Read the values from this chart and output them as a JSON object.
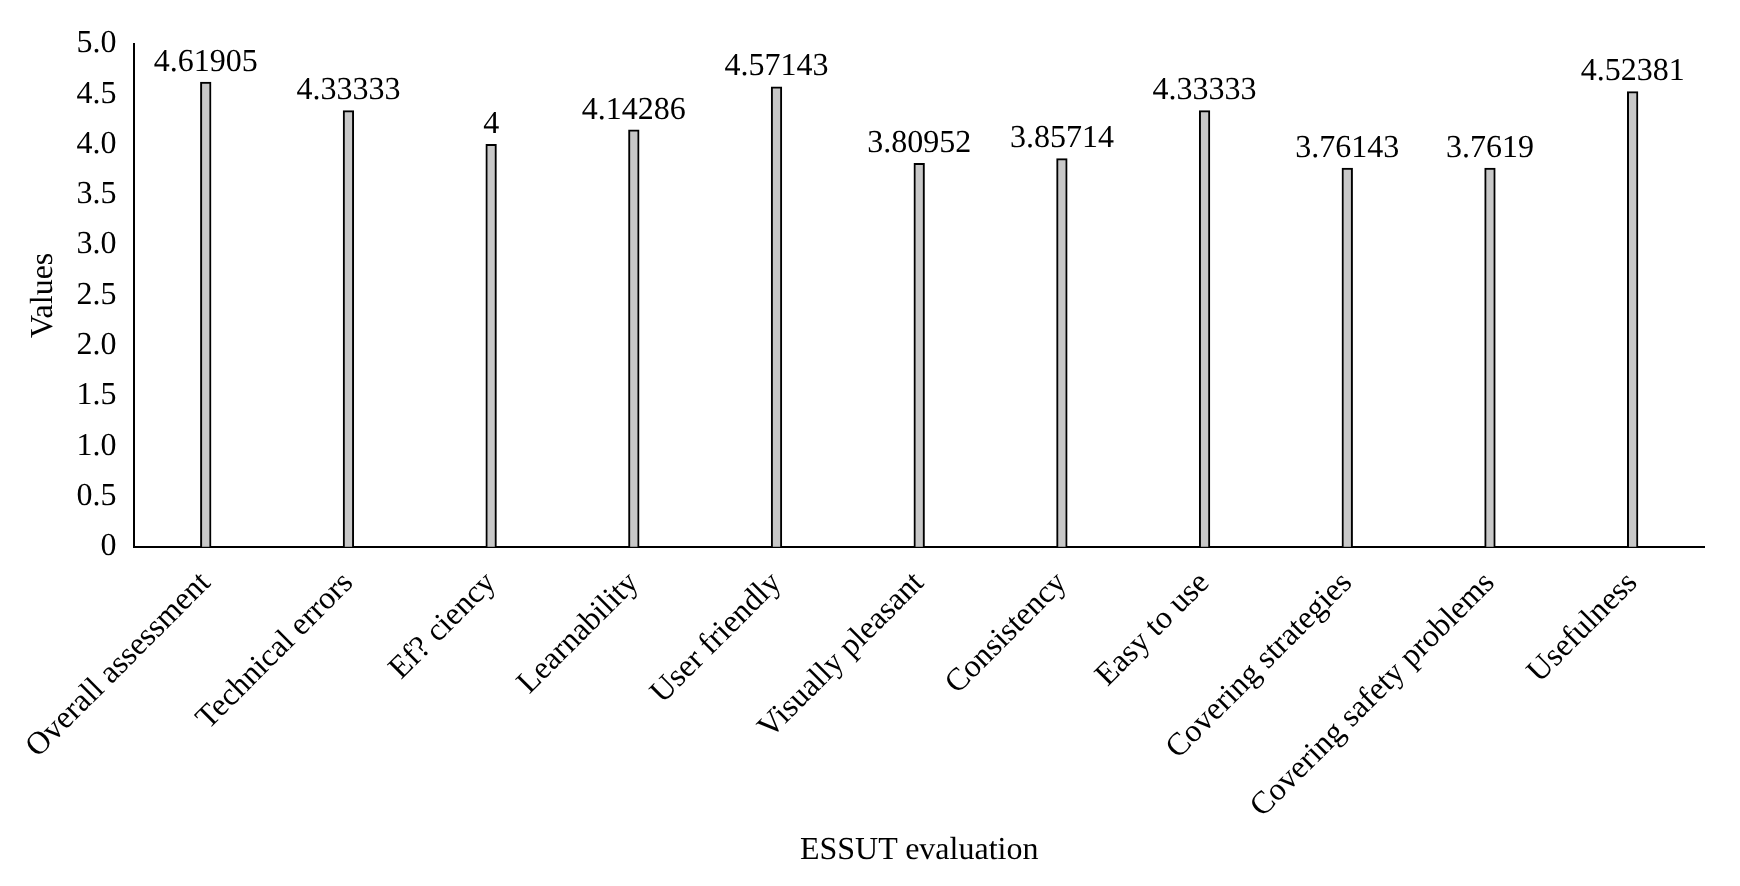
{
  "chart_data": {
    "type": "bar",
    "xlabel": "ESSUT evaluation",
    "ylabel": "Values",
    "categories": [
      "Overall assessment",
      "Technical errors",
      "Ef? ciency",
      "Learnability",
      "User friendly",
      "Visually pleasant",
      "Consistency",
      "Easy to use",
      "Covering strategies",
      "Covering safety problems",
      "Usefulness"
    ],
    "values": [
      4.61905,
      4.33333,
      4,
      4.14286,
      4.57143,
      3.80952,
      3.85714,
      4.33333,
      3.76143,
      3.7619,
      4.52381
    ],
    "color": "#c8c8c8",
    "ylim": [
      0,
      5
    ],
    "yticks": [
      0,
      {
        "value": 0.5,
        "label": "0.5"
      },
      {
        "value": 1,
        "label": "1.0"
      },
      {
        "value": 1.5,
        "label": "1.5"
      },
      {
        "value": 2,
        "label": "2.0"
      },
      {
        "value": 2.5,
        "label": "2.5"
      },
      {
        "value": 3,
        "label": "3.0"
      },
      {
        "value": 3.5,
        "label": "3.5"
      },
      {
        "value": 4,
        "label": "4.0"
      },
      {
        "value": 4.5,
        "label": "4.5"
      },
      {
        "value": 5,
        "label": "5.0"
      }
    ],
    "grid": false,
    "legend": false,
    "data_labels": true
  }
}
